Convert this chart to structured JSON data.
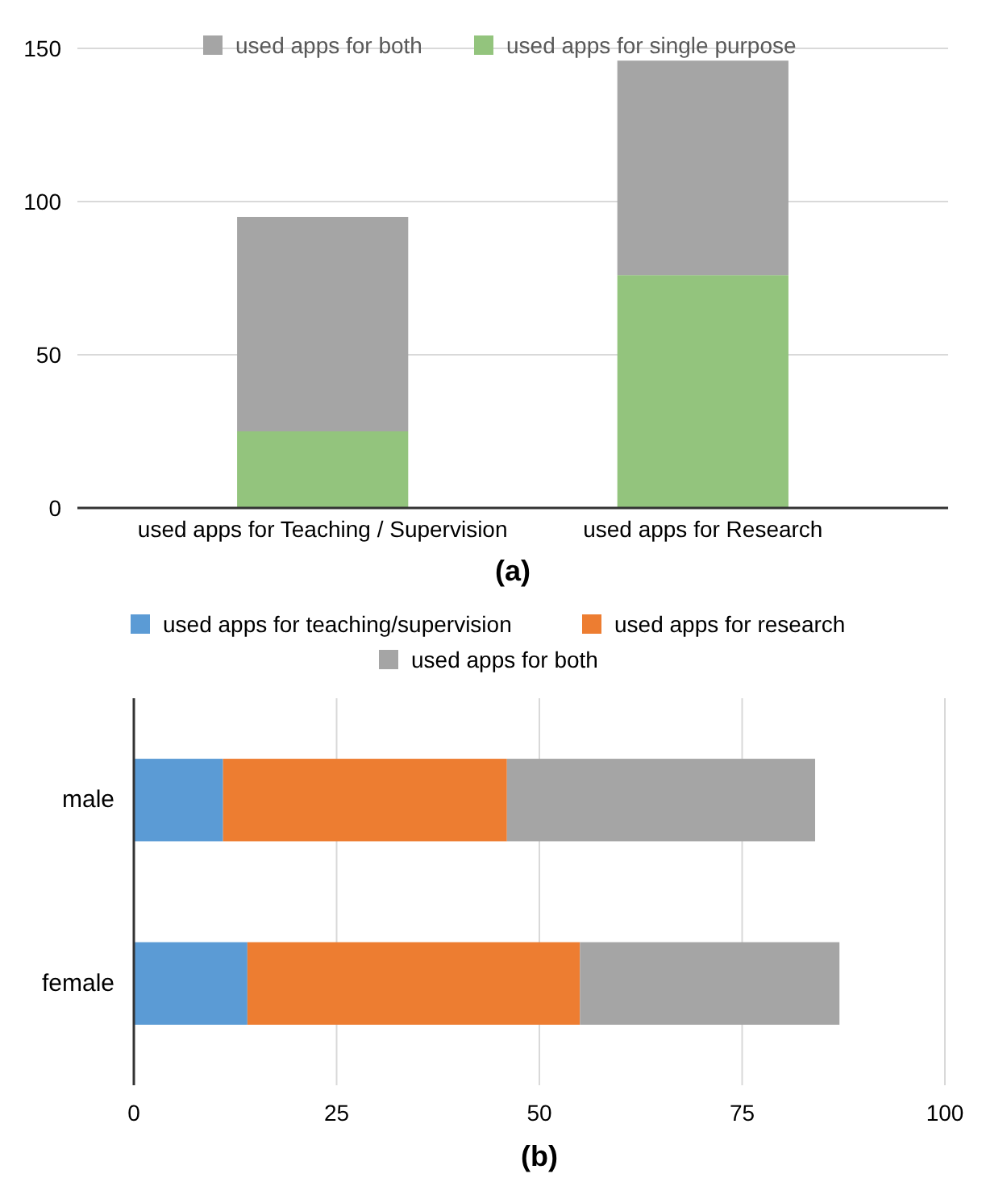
{
  "chart_data": [
    {
      "type": "bar",
      "title": "(a)",
      "stacked": true,
      "categories": [
        "used apps for Teaching / Supervision",
        "used apps for Research"
      ],
      "series": [
        {
          "name": "used apps for single purpose",
          "color": "#93c47d",
          "values": [
            25,
            76
          ]
        },
        {
          "name": "used apps for both",
          "color": "#a5a5a5",
          "values": [
            70,
            70
          ]
        }
      ],
      "ylim": [
        0,
        150
      ],
      "yticks": [
        0,
        50,
        100,
        150
      ],
      "grid": "y",
      "legend": "top"
    },
    {
      "type": "bar",
      "title": "(b)",
      "stacked": true,
      "orientation": "horizontal",
      "categories": [
        "male",
        "female"
      ],
      "series": [
        {
          "name": "used apps for teaching/supervision",
          "color": "#5b9bd5",
          "values": [
            11,
            14
          ]
        },
        {
          "name": "used apps for research",
          "color": "#ed7d31",
          "values": [
            35,
            41
          ]
        },
        {
          "name": "used apps for both",
          "color": "#a5a5a5",
          "values": [
            38,
            32
          ]
        }
      ],
      "xlim": [
        0,
        100
      ],
      "xticks": [
        0,
        25,
        50,
        75,
        100
      ],
      "grid": "x",
      "legend": "top"
    }
  ]
}
